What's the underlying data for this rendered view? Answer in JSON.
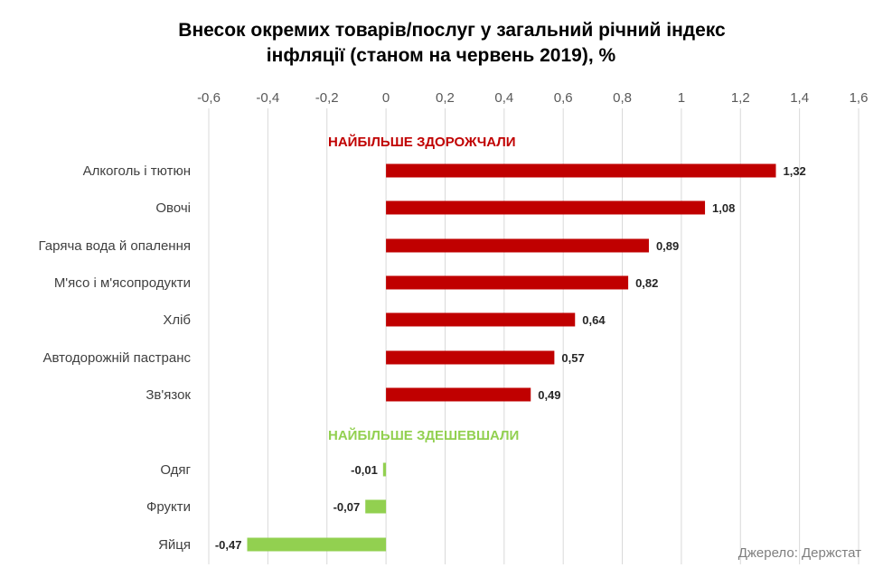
{
  "chart_data": {
    "type": "bar",
    "orientation": "horizontal",
    "title": "Внесок окремих товарів/послуг у загальний річний індекс інфляції (станом на червень 2019), %",
    "title_lines": [
      "Внесок окремих товарів/послуг у загальний річний індекс",
      "інфляції (станом на червень 2019), %"
    ],
    "xlim": [
      -0.6,
      1.6
    ],
    "x_ticks": [
      "-0,6",
      "-0,4",
      "-0,2",
      "0",
      "0,2",
      "0,4",
      "0,6",
      "0,8",
      "1",
      "1,2",
      "1,4",
      "1,6"
    ],
    "x_tick_values": [
      -0.6,
      -0.4,
      -0.2,
      0,
      0.2,
      0.4,
      0.6,
      0.8,
      1,
      1.2,
      1.4,
      1.6
    ],
    "axis_position": "top",
    "grid": "vertical",
    "groups": [
      {
        "label": "НАЙБІЛЬШЕ ЗДОРОЖЧАЛИ",
        "color": "#C00000",
        "categories": [
          "Алкоголь і тютюн",
          "Овочі",
          "Гаряча вода й опалення",
          "М'ясо і м'ясопродукти",
          "Хліб",
          "Автодорожній пастранс",
          "Зв'язок"
        ],
        "values": [
          1.32,
          1.08,
          0.89,
          0.82,
          0.64,
          0.57,
          0.49
        ],
        "labels": [
          "1,32",
          "1,08",
          "0,89",
          "0,82",
          "0,64",
          "0,57",
          "0,49"
        ]
      },
      {
        "label": "НАЙБІЛЬШЕ ЗДЕШЕВШАЛИ",
        "color": "#92D050",
        "categories": [
          "Одяг",
          "Фрукти",
          "Яйця"
        ],
        "values": [
          -0.01,
          -0.07,
          -0.47
        ],
        "labels": [
          "-0,01",
          "-0,07",
          "-0,47"
        ]
      }
    ],
    "source": "Джерело: Держстат"
  }
}
